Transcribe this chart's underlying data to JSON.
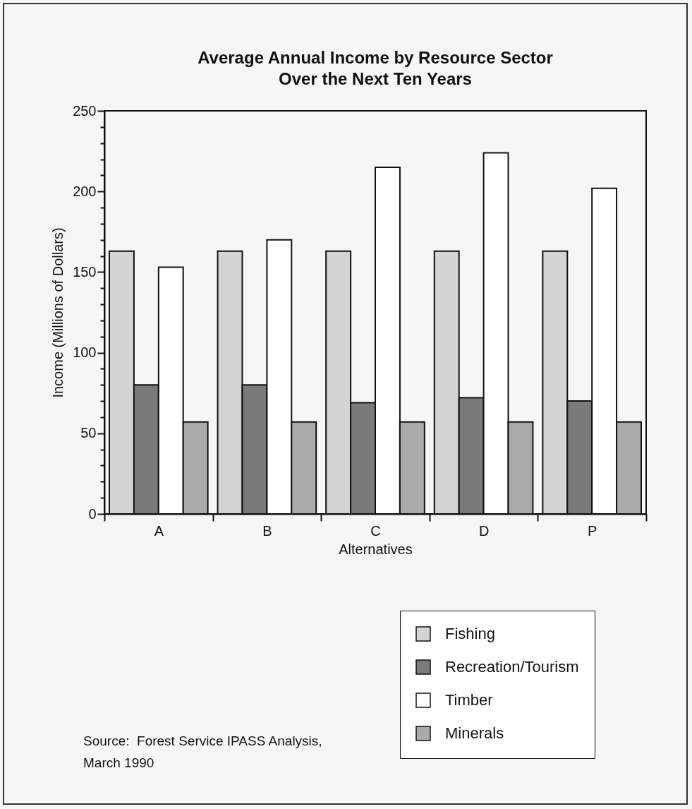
{
  "chart_data": {
    "type": "bar",
    "title": "Average Annual Income by Resource Sector\nOver the Next Ten Years",
    "xlabel": "Alternatives",
    "ylabel": "Income (Millions of Dollars)",
    "categories": [
      "A",
      "B",
      "C",
      "D",
      "P"
    ],
    "series": [
      {
        "name": "Fishing",
        "color": "#d4d4d4",
        "values": [
          163,
          163,
          163,
          163,
          163
        ]
      },
      {
        "name": "Recreation/Tourism",
        "color": "#7a7a7a",
        "values": [
          80,
          80,
          69,
          72,
          70
        ]
      },
      {
        "name": "Timber",
        "color": "#ffffff",
        "values": [
          153,
          170,
          215,
          224,
          202
        ]
      },
      {
        "name": "Minerals",
        "color": "#aaaaaa",
        "values": [
          57,
          57,
          57,
          57,
          57
        ]
      }
    ],
    "ylim": [
      0,
      250
    ],
    "yticks": [
      0,
      {
        "value": 10,
        "label": null
      },
      {
        "value": 20,
        "label": null
      },
      {
        "value": 30,
        "label": null
      },
      {
        "value": 40,
        "label": null
      },
      50,
      {
        "value": 60,
        "label": null
      },
      {
        "value": 70,
        "label": null
      },
      {
        "value": 80,
        "label": null
      },
      {
        "value": 90,
        "label": null
      },
      100,
      {
        "value": 110,
        "label": null
      },
      {
        "value": 120,
        "label": null
      },
      {
        "value": 130,
        "label": null
      },
      {
        "value": 140,
        "label": null
      },
      150,
      {
        "value": 160,
        "label": null
      },
      {
        "value": 170,
        "label": null
      },
      {
        "value": 180,
        "label": null
      },
      {
        "value": 190,
        "label": null
      },
      200,
      {
        "value": 210,
        "label": null
      },
      {
        "value": 220,
        "label": null
      },
      {
        "value": 230,
        "label": null
      },
      {
        "value": 240,
        "label": null
      },
      250
    ],
    "grid": false,
    "legend": "bottom right",
    "annotations": [
      "Source:  Forest Service IPASS Analysis,\nMarch 1990"
    ]
  }
}
